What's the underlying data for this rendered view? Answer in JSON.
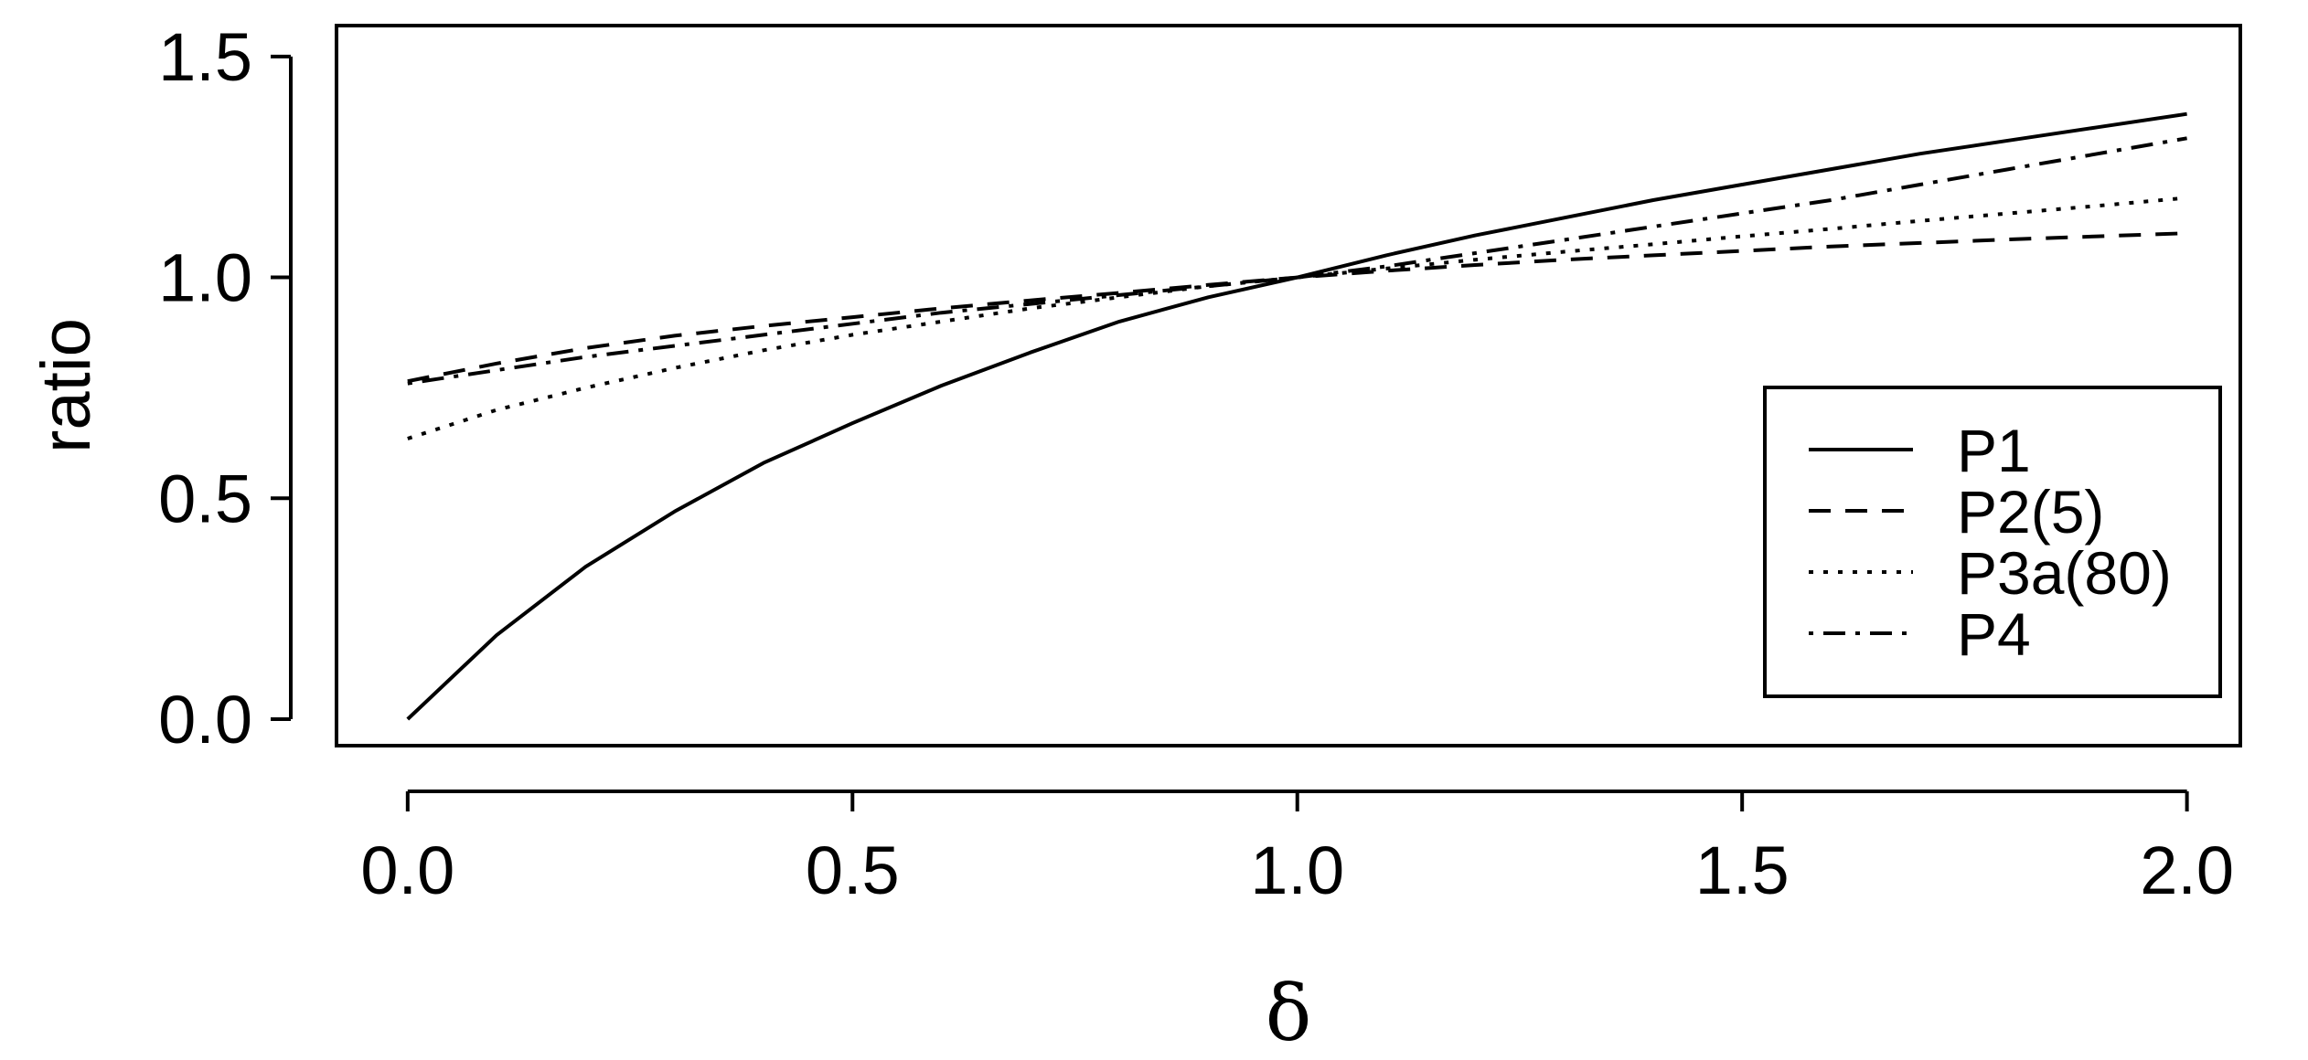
{
  "chart_data": {
    "type": "line",
    "title": "",
    "xlabel": "δ",
    "ylabel": "ratio",
    "xlim": [
      -0.08,
      2.06
    ],
    "ylim": [
      -0.06,
      1.57
    ],
    "xticks": [
      0.0,
      0.5,
      1.0,
      1.5,
      2.0
    ],
    "xtick_labels": [
      "0.0",
      "0.5",
      "1.0",
      "1.5",
      "2.0"
    ],
    "yticks": [
      0.0,
      0.5,
      1.0,
      1.5
    ],
    "ytick_labels": [
      "0.0",
      "0.5",
      "1.0",
      "1.5"
    ],
    "grid": false,
    "legend_position": "right",
    "x": [
      0.0,
      0.1,
      0.2,
      0.3,
      0.4,
      0.5,
      0.6,
      0.7,
      0.8,
      0.9,
      1.0,
      1.1,
      1.2,
      1.3,
      1.4,
      1.5,
      1.6,
      1.7,
      1.8,
      1.9,
      2.0
    ],
    "series": [
      {
        "name": "P1",
        "linestyle": "solid",
        "values": [
          0.0,
          0.19,
          0.345,
          0.47,
          0.58,
          0.67,
          0.755,
          0.83,
          0.9,
          0.955,
          1.0,
          1.05,
          1.095,
          1.135,
          1.175,
          1.21,
          1.245,
          1.28,
          1.31,
          1.34,
          1.37
        ]
      },
      {
        "name": "P2(5)",
        "linestyle": "dashed",
        "values": [
          0.765,
          0.805,
          0.84,
          0.868,
          0.89,
          0.91,
          0.93,
          0.948,
          0.965,
          0.983,
          1.0,
          1.015,
          1.028,
          1.04,
          1.05,
          1.06,
          1.07,
          1.078,
          1.086,
          1.093,
          1.1
        ]
      },
      {
        "name": "P3a(80)",
        "linestyle": "dotted",
        "values": [
          0.635,
          0.7,
          0.75,
          0.795,
          0.835,
          0.87,
          0.9,
          0.93,
          0.955,
          0.98,
          1.0,
          1.02,
          1.04,
          1.058,
          1.075,
          1.093,
          1.11,
          1.128,
          1.145,
          1.162,
          1.18
        ]
      },
      {
        "name": "P4",
        "linestyle": "dashdot",
        "values": [
          0.76,
          0.79,
          0.82,
          0.845,
          0.87,
          0.895,
          0.92,
          0.94,
          0.96,
          0.98,
          1.0,
          1.025,
          1.055,
          1.085,
          1.115,
          1.145,
          1.175,
          1.21,
          1.245,
          1.28,
          1.315
        ]
      }
    ]
  }
}
